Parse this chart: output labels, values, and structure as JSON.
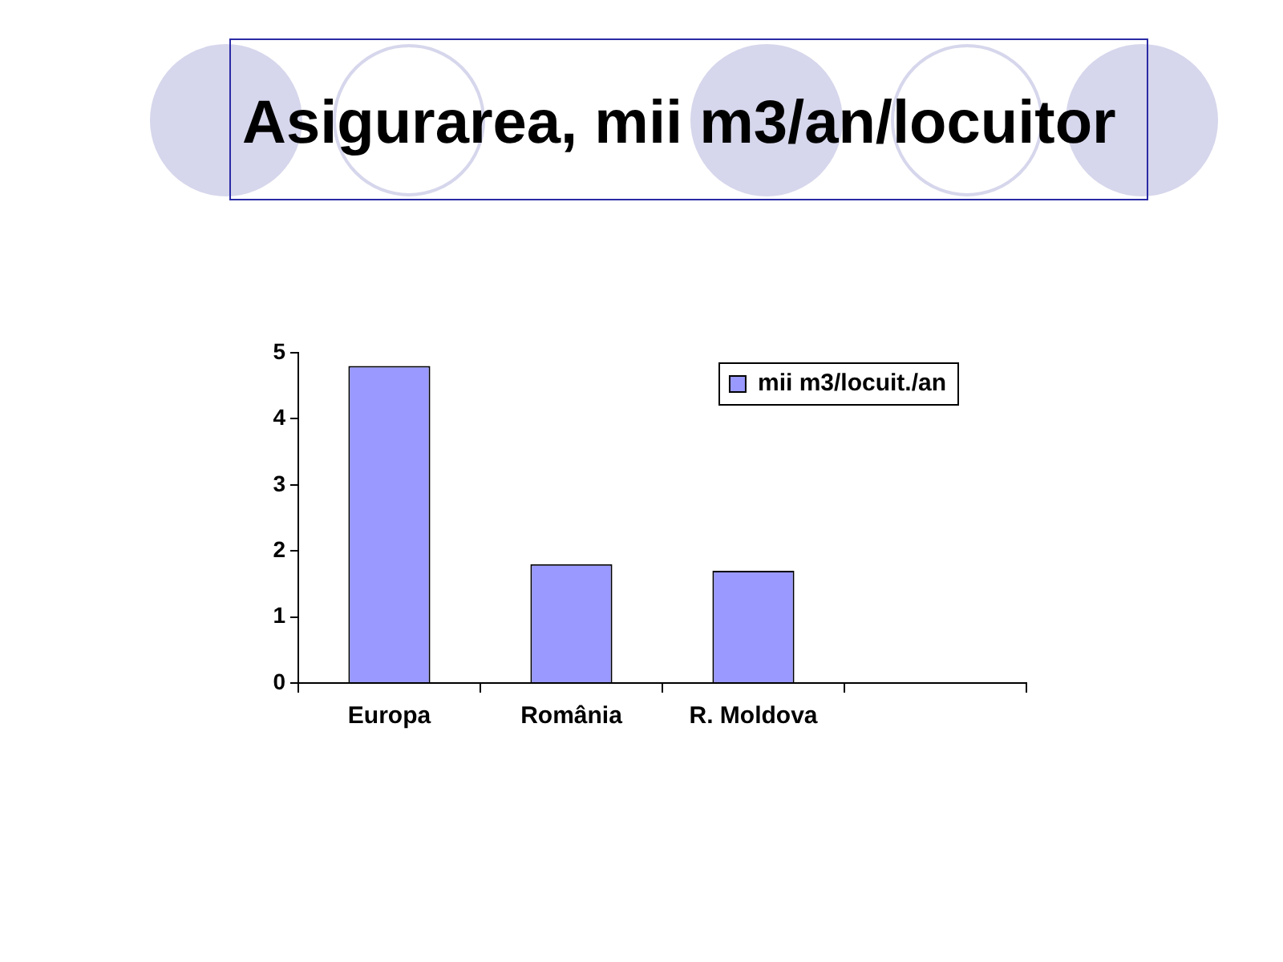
{
  "chart_data": {
    "type": "bar",
    "title": "Asigurarea, mii m3/an/locuitor",
    "categories": [
      "Europa",
      "România",
      "R. Moldova",
      null
    ],
    "series": [
      {
        "name": "mii m3/locuit./an",
        "color": "#9999ff",
        "values": [
          4.8,
          1.8,
          1.7,
          null
        ]
      }
    ],
    "ylim": [
      0,
      5
    ],
    "yticks": [
      0,
      1,
      2,
      3,
      4,
      5
    ],
    "grid": false,
    "legend": "top right"
  }
}
